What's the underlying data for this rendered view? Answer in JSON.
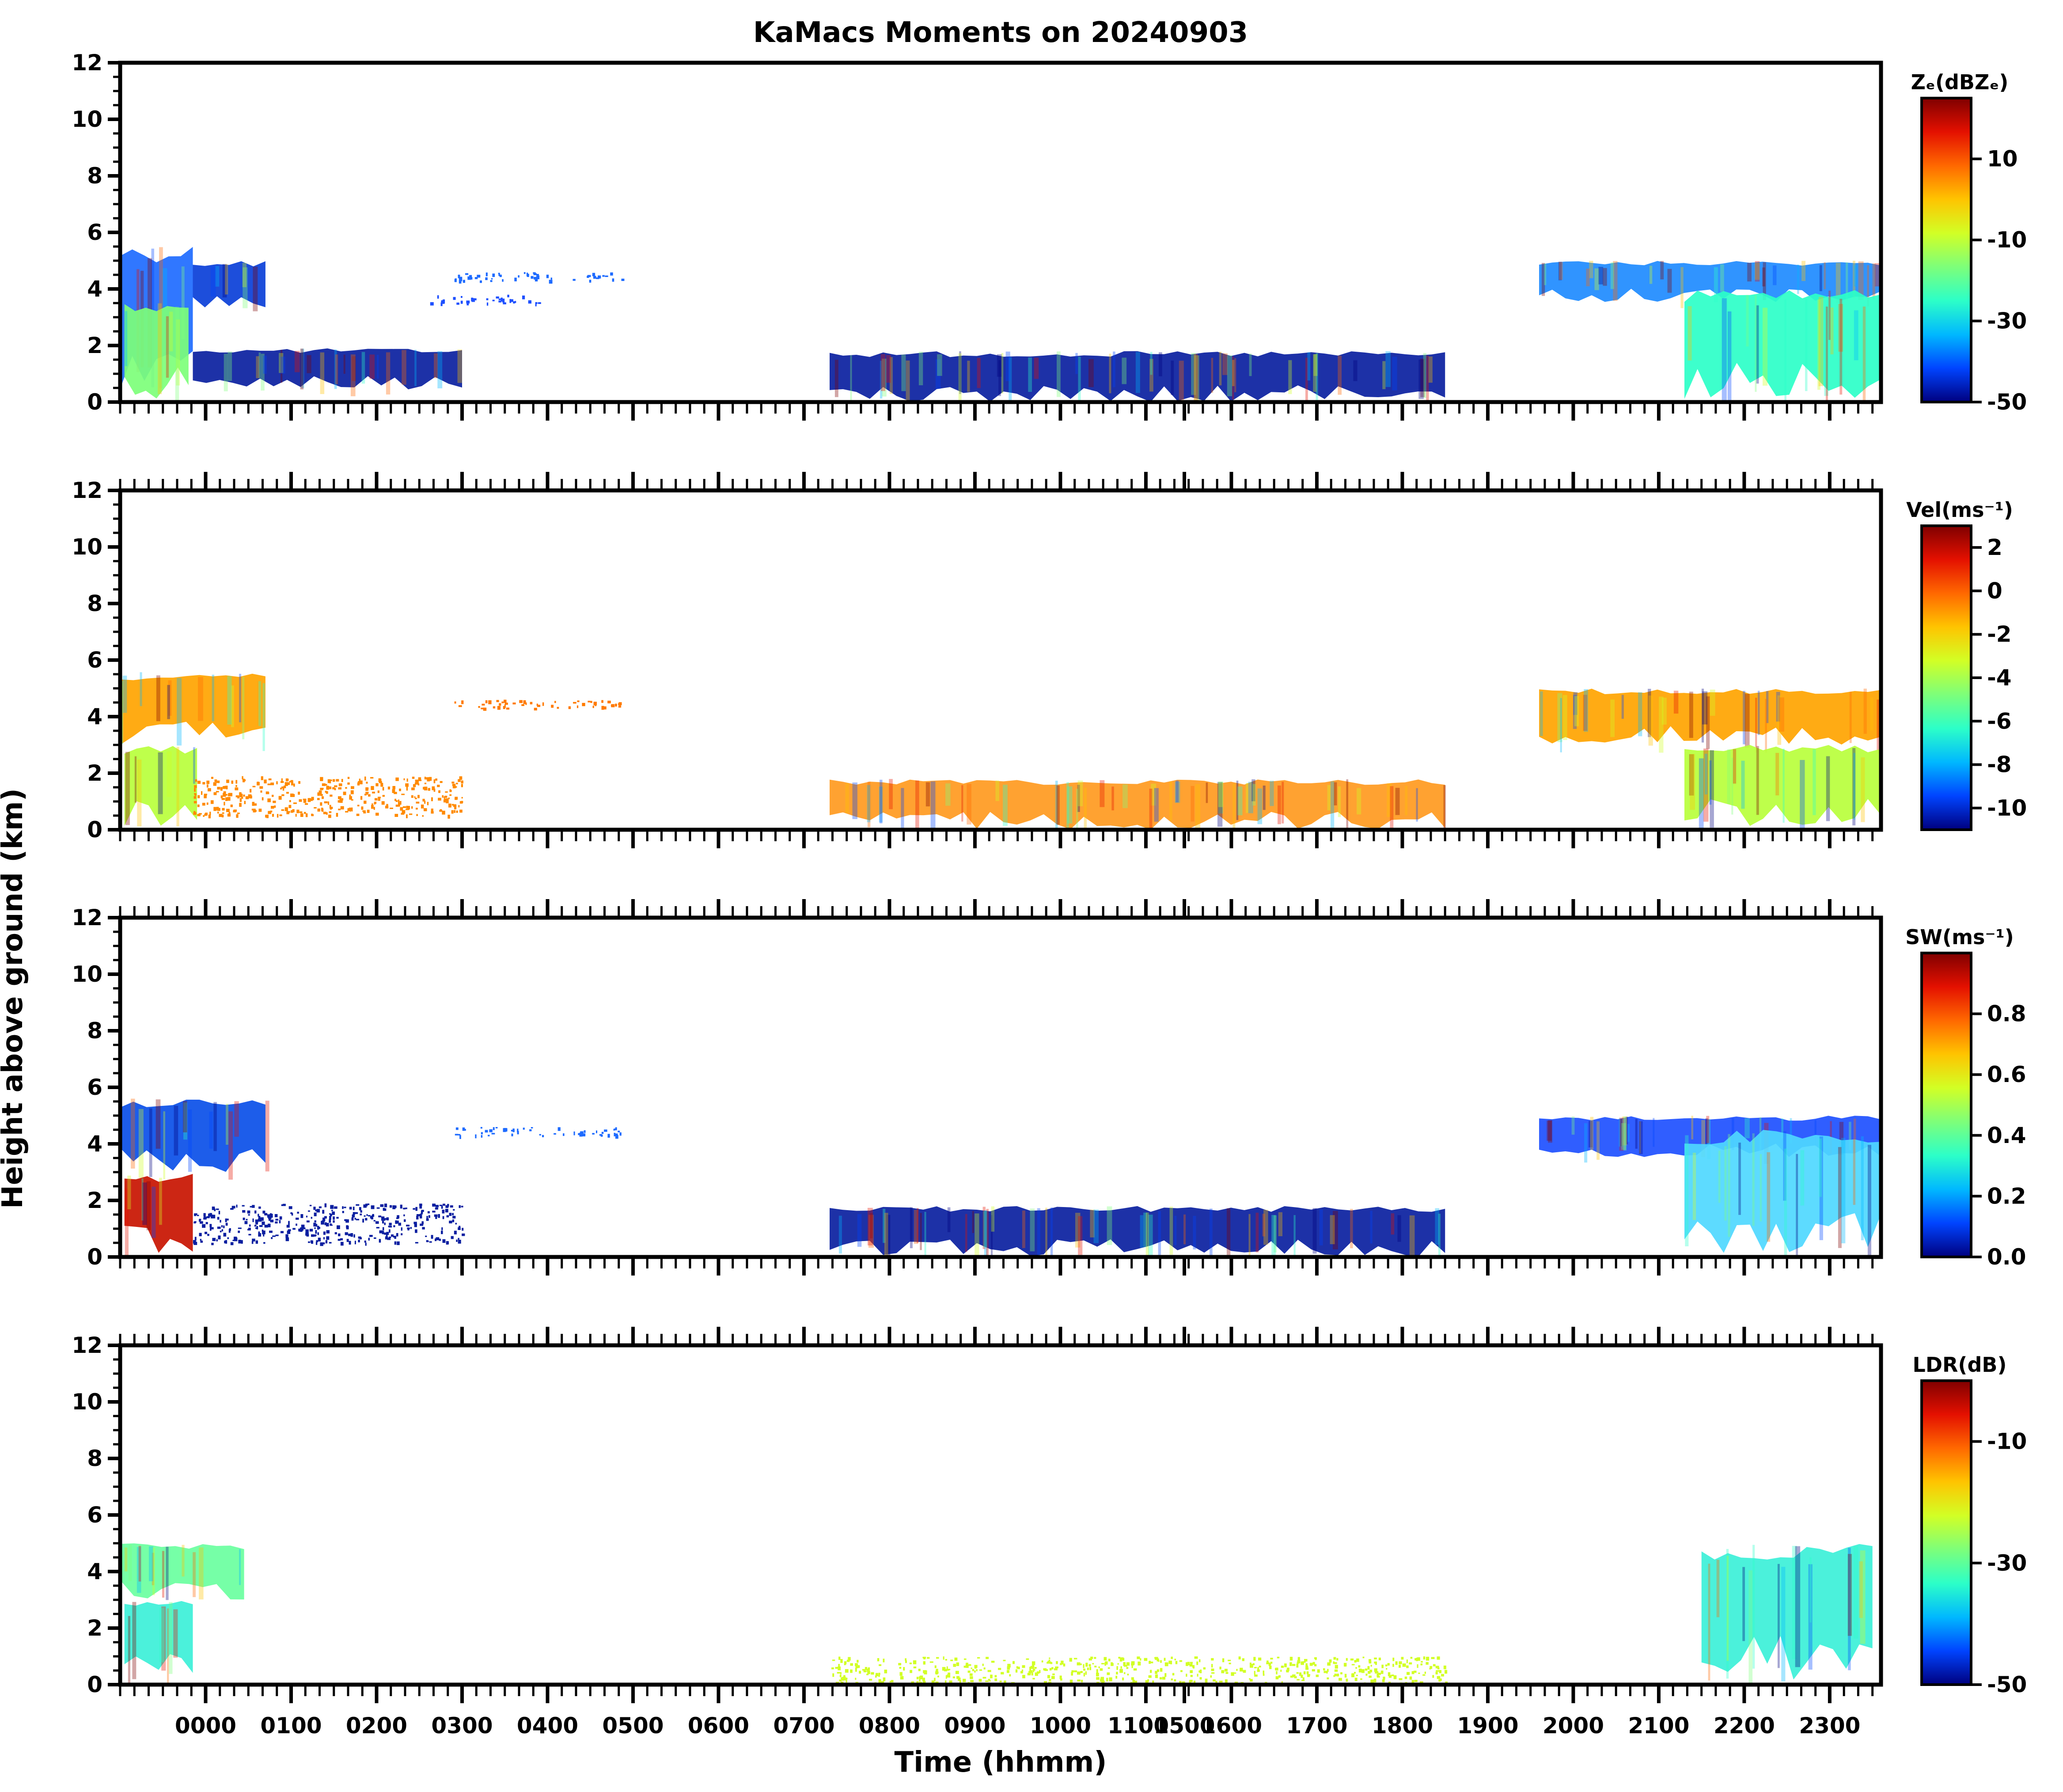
{
  "chart_data": {
    "type": "heatmap",
    "title": "KaMacs Moments on 20240903",
    "xlabel": "Time (hhmm)",
    "ylabel": "Height above ground (km)",
    "x_tick_labels": [
      "0000",
      "0100",
      "0200",
      "0300",
      "0400",
      "0500",
      "0600",
      "0700",
      "0800",
      "0900",
      "1000",
      "11005",
      "1500",
      "1600",
      "1700",
      "1800",
      "1900",
      "2000",
      "2100",
      "2200",
      "2300"
    ],
    "x_tick_values": [
      1.0,
      2.0,
      3.0,
      4.0,
      5.0,
      6.0,
      7.0,
      8.0,
      9.0,
      10.0,
      11.0,
      12.0,
      12.45,
      13.0,
      14.0,
      15.0,
      16.0,
      17.0,
      18.0,
      19.0,
      20.0
    ],
    "xlim": [
      0,
      20.6
    ],
    "ylim": [
      0,
      12
    ],
    "y_ticks": [
      0,
      2,
      4,
      6,
      8,
      10,
      12
    ],
    "panels": [
      {
        "name": "reflectivity",
        "colorbar_label": "Zₑ(dBZₑ)",
        "colorbar_range": [
          -50,
          25
        ],
        "colorbar_ticks": [
          10,
          -10,
          -30,
          -50
        ],
        "colors": [
          "#00007f",
          "#0044ff",
          "#00b8ff",
          "#2cffc8",
          "#7dff7a",
          "#d2ff25",
          "#ffc400",
          "#ff6800",
          "#e41000",
          "#7f0000"
        ],
        "echoes": [
          {
            "t0": 0.0,
            "t1": 0.85,
            "h0": 0.1,
            "h1": 5.6,
            "color": "#1e6bff"
          },
          {
            "t0": 0.05,
            "t1": 0.8,
            "h0": 0.1,
            "h1": 3.5,
            "color": "#7dff7a"
          },
          {
            "t0": 0.85,
            "t1": 1.7,
            "h0": 3.2,
            "h1": 5.0,
            "color": "#0a3fd8"
          },
          {
            "t0": 0.85,
            "t1": 4.0,
            "h0": 0.4,
            "h1": 1.9,
            "color": "#0a1fa0"
          },
          {
            "t0": 3.9,
            "t1": 5.9,
            "h0": 4.3,
            "h1": 4.6,
            "color": "#1e6bff"
          },
          {
            "t0": 3.6,
            "t1": 4.9,
            "h0": 3.5,
            "h1": 3.8,
            "color": "#1e50ff"
          },
          {
            "t0": 8.3,
            "t1": 15.5,
            "h0": 0.0,
            "h1": 1.8,
            "color": "#0a1fa0"
          },
          {
            "t0": 16.6,
            "t1": 20.6,
            "h0": 3.5,
            "h1": 5.0,
            "color": "#1e8bff"
          },
          {
            "t0": 18.3,
            "t1": 20.6,
            "h0": 0.0,
            "h1": 4.0,
            "color": "#2cffc8"
          }
        ]
      },
      {
        "name": "velocity",
        "colorbar_label": "Vel(ms⁻¹)",
        "colorbar_range": [
          -11,
          3
        ],
        "colorbar_ticks": [
          2,
          0,
          -2,
          -4,
          -6,
          -8,
          -10
        ],
        "colors": [
          "#00007f",
          "#0044ff",
          "#00b8ff",
          "#2cffc8",
          "#7dff7a",
          "#d2ff25",
          "#ffc400",
          "#ff6800",
          "#e41000",
          "#7f0000"
        ],
        "echoes": [
          {
            "t0": 0.0,
            "t1": 1.7,
            "h0": 3.0,
            "h1": 5.6,
            "color": "#ffa400"
          },
          {
            "t0": 0.05,
            "t1": 0.9,
            "h0": 0.1,
            "h1": 3.0,
            "color": "#b9ff3c"
          },
          {
            "t0": 0.85,
            "t1": 4.0,
            "h0": 0.5,
            "h1": 1.9,
            "color": "#ff8a00"
          },
          {
            "t0": 3.9,
            "t1": 5.9,
            "h0": 4.3,
            "h1": 4.6,
            "color": "#ff7a00"
          },
          {
            "t0": 8.3,
            "t1": 15.5,
            "h0": 0.0,
            "h1": 1.8,
            "color": "#ff9a20"
          },
          {
            "t0": 16.6,
            "t1": 20.6,
            "h0": 3.0,
            "h1": 5.0,
            "color": "#ffa400"
          },
          {
            "t0": 18.3,
            "t1": 20.6,
            "h0": 0.1,
            "h1": 3.0,
            "color": "#b9ff3c"
          }
        ]
      },
      {
        "name": "spectrum-width",
        "colorbar_label": "SW(ms⁻¹)",
        "colorbar_range": [
          0,
          1
        ],
        "colorbar_ticks": [
          0.8,
          0.6,
          0.4,
          0.2,
          0.0
        ],
        "colors": [
          "#00007f",
          "#0044ff",
          "#00b8ff",
          "#2cffc8",
          "#7dff7a",
          "#d2ff25",
          "#ffc400",
          "#ff6800",
          "#e41000",
          "#7f0000"
        ],
        "echoes": [
          {
            "t0": 0.0,
            "t1": 1.7,
            "h0": 3.0,
            "h1": 5.6,
            "color": "#0a4fe8"
          },
          {
            "t0": 0.05,
            "t1": 0.85,
            "h0": 0.1,
            "h1": 3.0,
            "color": "#c81400"
          },
          {
            "t0": 0.85,
            "t1": 4.0,
            "h0": 0.5,
            "h1": 1.9,
            "color": "#0a1fa0"
          },
          {
            "t0": 3.9,
            "t1": 5.9,
            "h0": 4.3,
            "h1": 4.6,
            "color": "#1e6bff"
          },
          {
            "t0": 8.3,
            "t1": 15.5,
            "h0": 0.0,
            "h1": 1.8,
            "color": "#0a1fa0"
          },
          {
            "t0": 16.6,
            "t1": 20.6,
            "h0": 3.5,
            "h1": 5.0,
            "color": "#1e50ff"
          },
          {
            "t0": 18.3,
            "t1": 20.6,
            "h0": 0.1,
            "h1": 4.5,
            "color": "#4fd8ff"
          }
        ]
      },
      {
        "name": "ldr",
        "colorbar_label": "LDR(dB)",
        "colorbar_range": [
          -50,
          0
        ],
        "colorbar_ticks": [
          -10,
          -30,
          -50
        ],
        "colors": [
          "#00007f",
          "#0044ff",
          "#00b8ff",
          "#2cffc8",
          "#7dff7a",
          "#d2ff25",
          "#ffc400",
          "#ff6800",
          "#e41000",
          "#7f0000"
        ],
        "echoes": [
          {
            "t0": 0.0,
            "t1": 1.45,
            "h0": 3.0,
            "h1": 5.0,
            "color": "#6affa0"
          },
          {
            "t0": 0.05,
            "t1": 0.85,
            "h0": 0.1,
            "h1": 3.0,
            "color": "#3cf0d8"
          },
          {
            "t0": 8.3,
            "t1": 15.5,
            "h0": 0.0,
            "h1": 1.0,
            "color": "#d2ff25"
          },
          {
            "t0": 18.5,
            "t1": 20.5,
            "h0": 0.1,
            "h1": 5.0,
            "color": "#3cf0d8"
          }
        ]
      }
    ]
  }
}
